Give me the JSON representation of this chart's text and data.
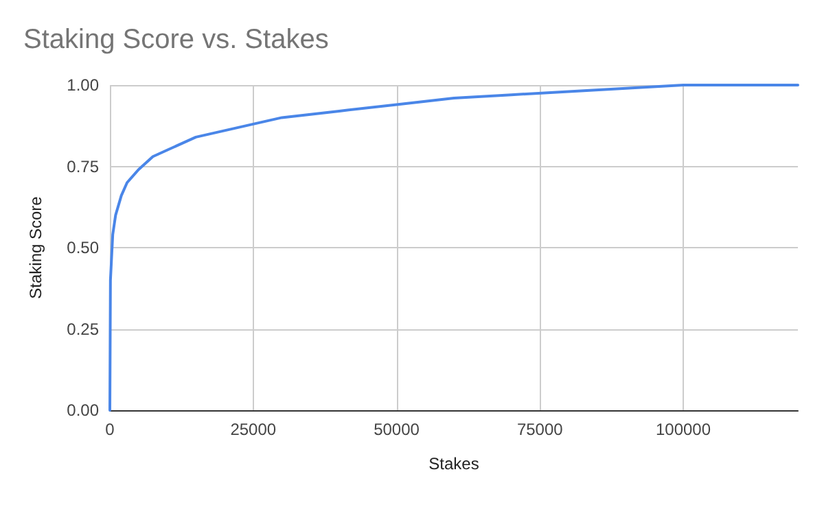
{
  "chart_data": {
    "type": "line",
    "title": "Staking Score vs. Stakes",
    "xlabel": "Stakes",
    "ylabel": "Staking Score",
    "x": [
      0,
      100,
      500,
      1000,
      2000,
      3000,
      5000,
      7500,
      10000,
      15000,
      20000,
      25000,
      30000,
      40000,
      50000,
      60000,
      70000,
      80000,
      90000,
      100000,
      120000
    ],
    "series": [
      {
        "color": "#4a86e8",
        "values": [
          0,
          0.4,
          0.54,
          0.6,
          0.66,
          0.7,
          0.74,
          0.78,
          0.8,
          0.84,
          0.86,
          0.88,
          0.9,
          0.92,
          0.94,
          0.96,
          0.97,
          0.98,
          0.99,
          1,
          1
        ]
      }
    ],
    "xlim": [
      0,
      120000
    ],
    "xticks": [
      0,
      25000,
      50000,
      75000,
      100000
    ],
    "ylim": [
      0,
      1
    ],
    "yticks": [
      {
        "value": 0,
        "label": "0.00"
      },
      {
        "value": 0.25,
        "label": "0.25"
      },
      {
        "value": 0.5,
        "label": "0.50"
      },
      {
        "value": 0.75,
        "label": "0.75"
      },
      {
        "value": 1,
        "label": "1.00"
      }
    ],
    "grid": true,
    "marker": "none",
    "line_style": "solid"
  }
}
